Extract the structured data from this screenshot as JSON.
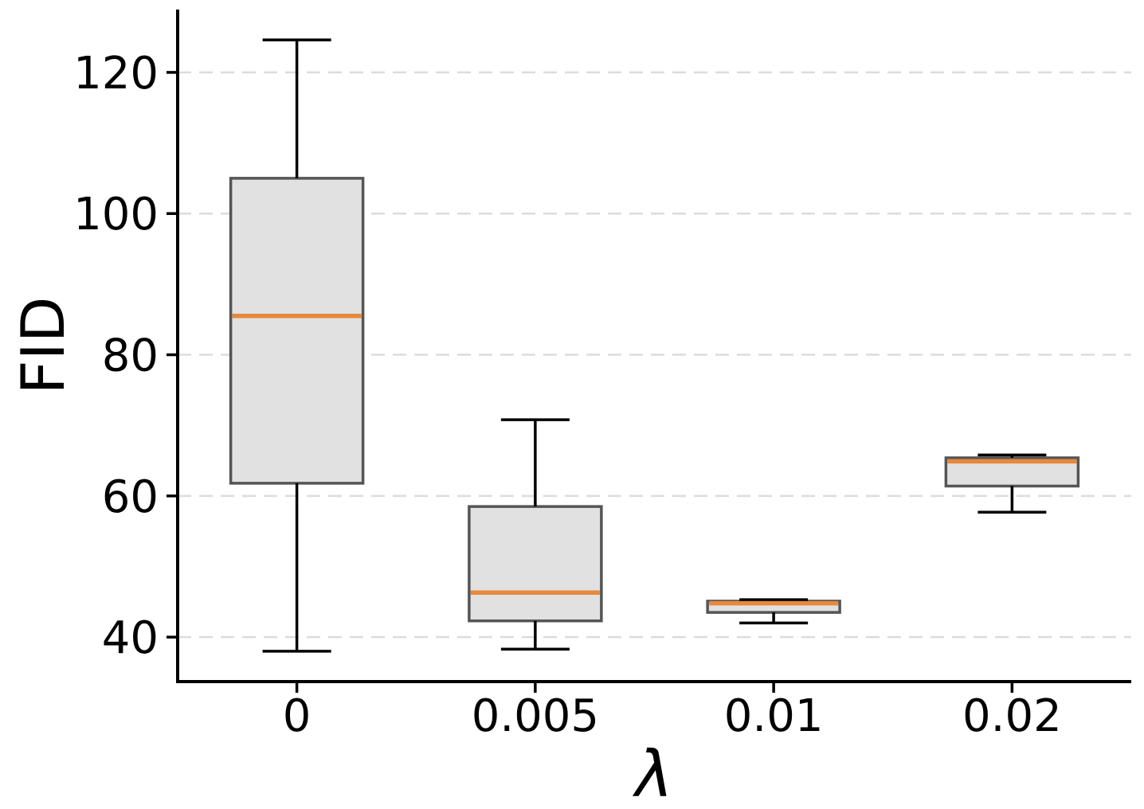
{
  "chart_data": {
    "type": "boxplot",
    "title": "",
    "xlabel": "λ",
    "ylabel": "FID",
    "categories": [
      "0",
      "0.005",
      "0.01",
      "0.02"
    ],
    "yticks": [
      40,
      60,
      80,
      100,
      120
    ],
    "ylim": [
      33.7,
      128.9
    ],
    "grid": "horizontal-dashed",
    "legend": "none",
    "series": [
      {
        "category": "0",
        "whisker_low": 38.0,
        "q1": 61.8,
        "median": 85.5,
        "q3": 105.0,
        "whisker_high": 124.6
      },
      {
        "category": "0.005",
        "whisker_low": 38.3,
        "q1": 42.3,
        "median": 46.3,
        "q3": 58.5,
        "whisker_high": 70.8
      },
      {
        "category": "0.01",
        "whisker_low": 42.0,
        "q1": 43.5,
        "median": 44.8,
        "q3": 45.1,
        "whisker_high": 45.3
      },
      {
        "category": "0.02",
        "whisker_low": 57.7,
        "q1": 61.4,
        "median": 64.9,
        "q3": 65.4,
        "whisker_high": 65.8
      }
    ],
    "colors": {
      "box_fill": "#e1e1e1",
      "box_edge": "#555555",
      "median": "#e8883a",
      "whisker": "#000000",
      "grid": "#dcdcdc",
      "axis": "#000000",
      "background": "#ffffff"
    }
  }
}
